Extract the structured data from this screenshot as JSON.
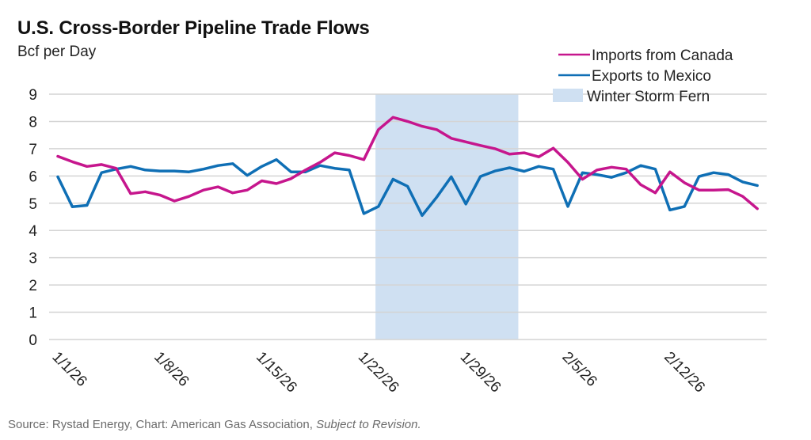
{
  "chart_data": {
    "type": "line",
    "title": "U.S. Cross-Border Pipeline Trade Flows",
    "subtitle": "Bcf per Day",
    "xlabel": "",
    "ylabel": "Bcf per Day",
    "ylim": [
      0,
      9
    ],
    "yticks": [
      "0",
      "1",
      "2",
      "3",
      "4",
      "5",
      "6",
      "7",
      "8",
      "9"
    ],
    "grid": true,
    "legend_position": "top-right",
    "x_start": "1/1/26",
    "x_interval_days": 1,
    "xtick_labels": [
      "1/1/26",
      "1/8/26",
      "1/15/26",
      "1/22/26",
      "1/29/26",
      "2/5/26",
      "2/12/26"
    ],
    "xtick_indices": [
      0,
      7,
      14,
      21,
      28,
      35,
      42
    ],
    "series": [
      {
        "name": "Imports from Canada",
        "color": "#C6168D",
        "values": [
          6.72,
          6.52,
          6.35,
          6.42,
          6.28,
          5.35,
          5.42,
          5.3,
          5.08,
          5.25,
          5.48,
          5.6,
          5.38,
          5.48,
          5.82,
          5.72,
          5.9,
          6.22,
          6.5,
          6.85,
          6.75,
          6.6,
          7.7,
          8.15,
          8.0,
          7.82,
          7.7,
          7.38,
          7.25,
          7.12,
          7.0,
          6.8,
          6.85,
          6.7,
          7.02,
          6.5,
          5.88,
          6.22,
          6.32,
          6.25,
          5.68,
          5.38,
          6.15,
          5.75,
          5.48,
          5.48,
          5.5,
          5.25,
          4.8
        ]
      },
      {
        "name": "Exports to Mexico",
        "color": "#0F6FB5",
        "values": [
          5.97,
          4.87,
          4.92,
          6.12,
          6.25,
          6.35,
          6.22,
          6.18,
          6.18,
          6.15,
          6.25,
          6.38,
          6.45,
          6.02,
          6.35,
          6.6,
          6.15,
          6.15,
          6.38,
          6.28,
          6.22,
          4.62,
          4.88,
          5.88,
          5.62,
          4.55,
          5.22,
          5.97,
          4.97,
          5.98,
          6.18,
          6.3,
          6.17,
          6.35,
          6.25,
          4.88,
          6.12,
          6.05,
          5.95,
          6.12,
          6.38,
          6.25,
          4.75,
          4.88,
          5.98,
          6.12,
          6.05,
          5.78,
          5.65
        ]
      }
    ],
    "annotations": [
      {
        "type": "shaded-range",
        "name": "Winter Storm Fern",
        "color": "#CFE0F2",
        "x_from_index": 21.8,
        "x_to_index": 31.6
      }
    ],
    "legend": [
      "Imports from Canada",
      "Exports to Mexico",
      "Winter Storm Fern"
    ]
  },
  "source": {
    "prefix": "Source: Rystad Energy, Chart: American Gas Association, ",
    "italic": "Subject to Revision."
  }
}
